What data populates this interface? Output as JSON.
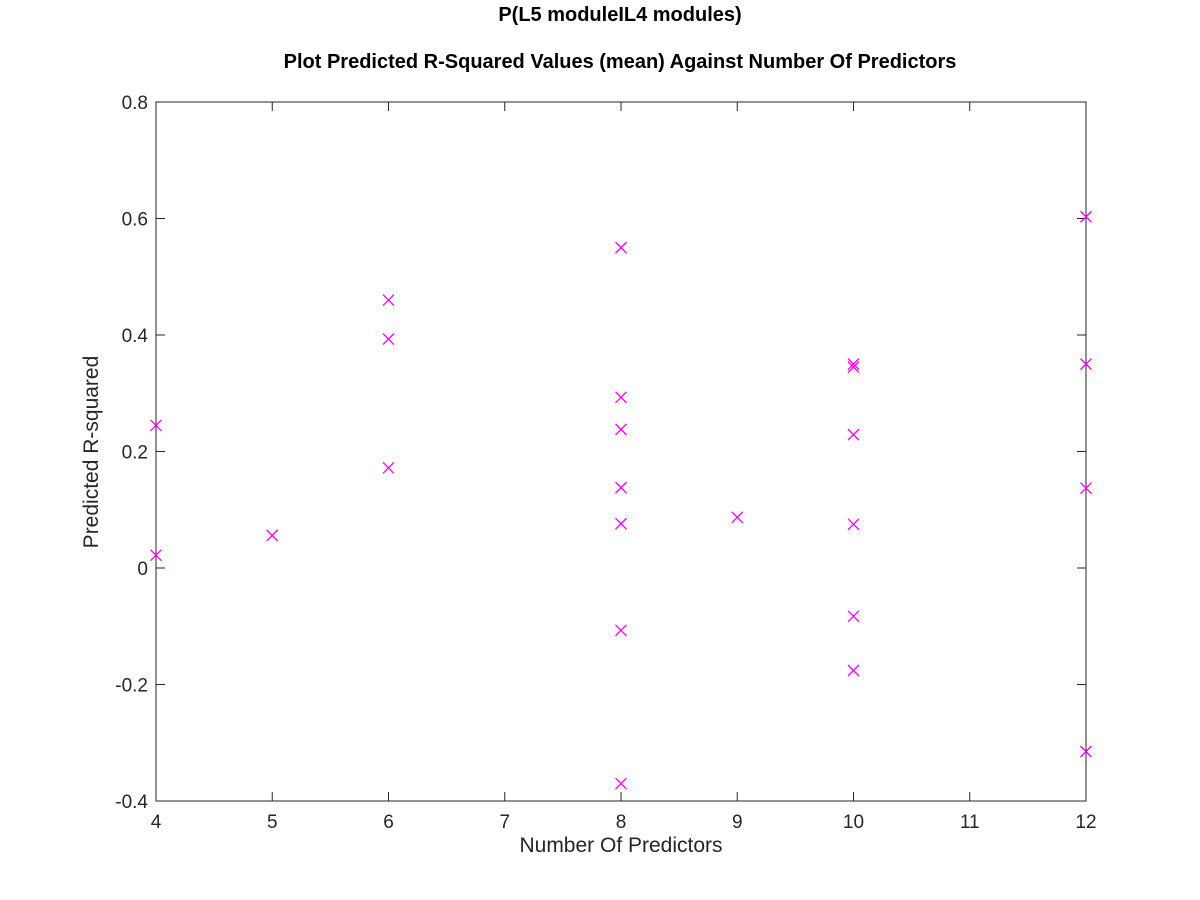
{
  "chart_data": {
    "type": "scatter",
    "title_line1": "P(L5 moduleIL4 modules)",
    "title_line2": "Plot Predicted R-Squared Values (mean) Against Number Of Predictors",
    "xlabel": "Number Of Predictors",
    "ylabel": "Predicted R-squared",
    "xlim": [
      4,
      12
    ],
    "ylim": [
      -0.4,
      0.8
    ],
    "xticks": [
      4,
      5,
      6,
      7,
      8,
      9,
      10,
      11,
      12
    ],
    "yticks": [
      -0.4,
      -0.2,
      0,
      0.2,
      0.4,
      0.6,
      0.8
    ],
    "xtick_labels": [
      "4",
      "5",
      "6",
      "7",
      "8",
      "9",
      "10",
      "11",
      "12"
    ],
    "ytick_labels": [
      "-0.4",
      "-0.2",
      "0",
      "0.2",
      "0.4",
      "0.6",
      "0.8"
    ],
    "grid": false,
    "marker": "x",
    "marker_color": "#ff00ff",
    "axis_color": "#262626",
    "points": [
      {
        "x": 4,
        "y": 0.245
      },
      {
        "x": 4,
        "y": 0.022
      },
      {
        "x": 5,
        "y": 0.056
      },
      {
        "x": 6,
        "y": 0.46
      },
      {
        "x": 6,
        "y": 0.393
      },
      {
        "x": 6,
        "y": 0.172
      },
      {
        "x": 8,
        "y": 0.55
      },
      {
        "x": 8,
        "y": 0.293
      },
      {
        "x": 8,
        "y": 0.238
      },
      {
        "x": 8,
        "y": 0.138
      },
      {
        "x": 8,
        "y": 0.076
      },
      {
        "x": 8,
        "y": -0.107
      },
      {
        "x": 8,
        "y": -0.37
      },
      {
        "x": 9,
        "y": 0.087
      },
      {
        "x": 10,
        "y": 0.35
      },
      {
        "x": 10,
        "y": 0.345
      },
      {
        "x": 10,
        "y": 0.229
      },
      {
        "x": 10,
        "y": 0.075
      },
      {
        "x": 10,
        "y": -0.083
      },
      {
        "x": 10,
        "y": -0.176
      },
      {
        "x": 12,
        "y": 0.603
      },
      {
        "x": 12,
        "y": 0.35
      },
      {
        "x": 12,
        "y": 0.137
      },
      {
        "x": 12,
        "y": -0.315
      }
    ]
  }
}
